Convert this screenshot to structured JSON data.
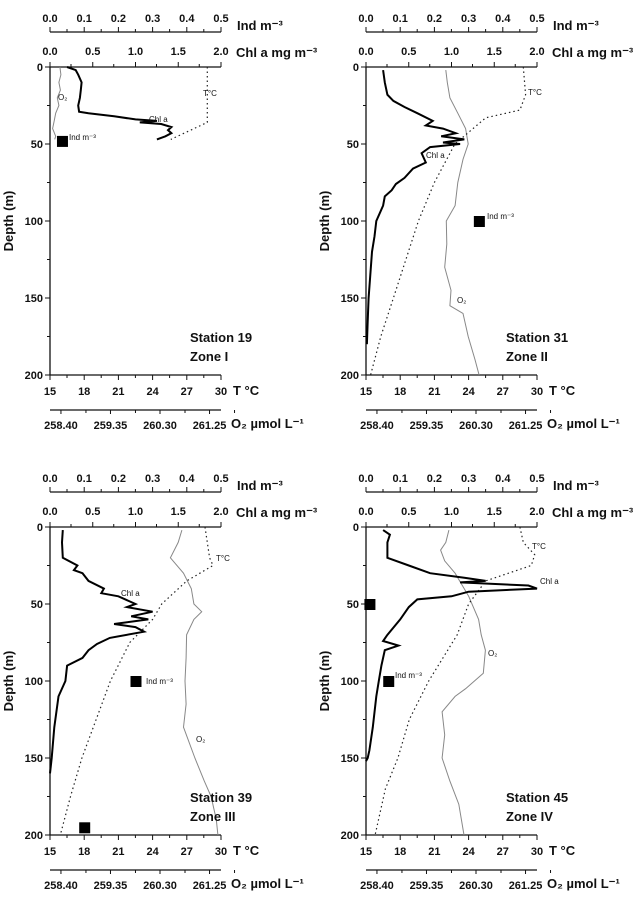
{
  "chart_data": {
    "type": "line",
    "shared": {
      "ind_axis": {
        "label": "Ind m⁻³",
        "range": [
          0,
          0.5
        ],
        "ticks": [
          "0.0",
          "0.1",
          "0.2",
          "0.3",
          "0.4",
          "0.5"
        ]
      },
      "chl_axis": {
        "label": "Chl a mg m⁻³",
        "range": [
          0,
          2.0
        ],
        "ticks": [
          "0.0",
          "0.5",
          "1.0",
          "1.5",
          "2.0"
        ]
      },
      "temp_axis": {
        "label": "T °C",
        "range": [
          15,
          30
        ],
        "ticks": [
          "15",
          "18",
          "21",
          "24",
          "27",
          "30"
        ]
      },
      "o2_axis": {
        "label": "O₂ µmol L⁻¹",
        "range": [
          258.19,
          261.47
        ],
        "ticks": [
          "258.40",
          "259.35",
          "260.30",
          "261.25"
        ]
      },
      "depth_axis": {
        "label": "Depth (m)",
        "range": [
          0,
          200
        ],
        "ticks": [
          "0",
          "50",
          "100",
          "150",
          "200"
        ]
      },
      "curve_labels": {
        "o2": "O₂",
        "chl": "Chl a",
        "temp": "T°C",
        "ind": "Ind m⁻³"
      }
    },
    "panels": [
      {
        "station": "Station 19",
        "zone": "Zone I",
        "chl": [
          [
            0,
            0.2
          ],
          [
            2,
            0.3
          ],
          [
            5,
            0.33
          ],
          [
            10,
            0.37
          ],
          [
            15,
            0.36
          ],
          [
            20,
            0.35
          ],
          [
            25,
            0.33
          ],
          [
            29,
            0.34
          ],
          [
            30,
            0.45
          ],
          [
            32,
            0.75
          ],
          [
            34,
            1.0
          ],
          [
            35,
            1.25
          ],
          [
            36,
            1.05
          ],
          [
            37,
            1.3
          ],
          [
            39,
            1.42
          ],
          [
            41,
            1.38
          ],
          [
            43,
            1.42
          ],
          [
            45,
            1.35
          ],
          [
            47,
            1.25
          ]
        ],
        "temp": [
          [
            0,
            28.8
          ],
          [
            36,
            28.8
          ],
          [
            47,
            25.6
          ]
        ],
        "o2": [
          [
            0,
            258.38
          ],
          [
            5,
            258.4
          ],
          [
            10,
            258.36
          ],
          [
            15,
            258.39
          ],
          [
            20,
            258.33
          ],
          [
            25,
            258.36
          ],
          [
            30,
            258.3
          ],
          [
            35,
            258.27
          ],
          [
            40,
            258.24
          ],
          [
            45,
            258.3
          ],
          [
            47,
            258.28
          ]
        ],
        "ind": [
          [
            48,
            0.035
          ]
        ]
      },
      {
        "station": "Station 31",
        "zone": "Zone II",
        "chl": [
          [
            2,
            0.2
          ],
          [
            10,
            0.22
          ],
          [
            18,
            0.25
          ],
          [
            22,
            0.32
          ],
          [
            26,
            0.45
          ],
          [
            30,
            0.6
          ],
          [
            35,
            0.78
          ],
          [
            38,
            0.7
          ],
          [
            40,
            0.9
          ],
          [
            43,
            1.05
          ],
          [
            45,
            0.88
          ],
          [
            47,
            1.15
          ],
          [
            49,
            0.9
          ],
          [
            50,
            1.1
          ],
          [
            52,
            0.75
          ],
          [
            56,
            0.65
          ],
          [
            62,
            0.7
          ],
          [
            66,
            0.55
          ],
          [
            72,
            0.45
          ],
          [
            76,
            0.35
          ],
          [
            80,
            0.3
          ],
          [
            84,
            0.22
          ],
          [
            90,
            0.2
          ],
          [
            100,
            0.12
          ],
          [
            110,
            0.1
          ],
          [
            120,
            0.07
          ],
          [
            135,
            0.05
          ],
          [
            150,
            0.03
          ],
          [
            165,
            0.02
          ],
          [
            180,
            0.01
          ]
        ],
        "temp": [
          [
            0,
            28.8
          ],
          [
            18,
            29.0
          ],
          [
            28,
            28.5
          ],
          [
            33,
            25.5
          ],
          [
            50,
            22.8
          ],
          [
            75,
            21.0
          ],
          [
            100,
            19.6
          ],
          [
            125,
            18.5
          ],
          [
            150,
            17.4
          ],
          [
            175,
            16.3
          ],
          [
            200,
            15.4
          ]
        ],
        "o2": [
          [
            2,
            259.72
          ],
          [
            10,
            259.75
          ],
          [
            20,
            259.8
          ],
          [
            30,
            259.95
          ],
          [
            40,
            260.1
          ],
          [
            50,
            260.15
          ],
          [
            60,
            260.05
          ],
          [
            75,
            259.95
          ],
          [
            90,
            259.9
          ],
          [
            100,
            259.73
          ],
          [
            115,
            259.74
          ],
          [
            130,
            259.7
          ],
          [
            145,
            259.82
          ],
          [
            155,
            259.8
          ],
          [
            160,
            260.05
          ],
          [
            175,
            260.15
          ],
          [
            190,
            260.28
          ],
          [
            200,
            260.36
          ]
        ],
        "ind": [
          [
            100,
            0.33
          ]
        ]
      },
      {
        "station": "Station 39",
        "zone": "Zone III",
        "chl": [
          [
            2,
            0.15
          ],
          [
            10,
            0.14
          ],
          [
            20,
            0.15
          ],
          [
            25,
            0.32
          ],
          [
            28,
            0.28
          ],
          [
            30,
            0.38
          ],
          [
            35,
            0.45
          ],
          [
            40,
            0.63
          ],
          [
            43,
            0.6
          ],
          [
            45,
            0.8
          ],
          [
            50,
            1.0
          ],
          [
            52,
            0.9
          ],
          [
            55,
            1.2
          ],
          [
            58,
            0.95
          ],
          [
            60,
            1.15
          ],
          [
            63,
            0.75
          ],
          [
            65,
            1.0
          ],
          [
            68,
            1.1
          ],
          [
            72,
            0.7
          ],
          [
            76,
            0.55
          ],
          [
            80,
            0.45
          ],
          [
            85,
            0.38
          ],
          [
            90,
            0.2
          ],
          [
            100,
            0.18
          ],
          [
            110,
            0.1
          ],
          [
            130,
            0.05
          ],
          [
            150,
            0.02
          ],
          [
            160,
            0.0
          ]
        ],
        "temp": [
          [
            0,
            28.6
          ],
          [
            20,
            29.0
          ],
          [
            25,
            29.3
          ],
          [
            35,
            27.0
          ],
          [
            50,
            24.8
          ],
          [
            60,
            24.0
          ],
          [
            75,
            22.0
          ],
          [
            100,
            20.3
          ],
          [
            120,
            19.3
          ],
          [
            150,
            17.8
          ],
          [
            175,
            16.8
          ],
          [
            200,
            15.9
          ]
        ],
        "o2": [
          [
            2,
            260.72
          ],
          [
            10,
            260.65
          ],
          [
            20,
            260.5
          ],
          [
            30,
            260.75
          ],
          [
            40,
            260.9
          ],
          [
            50,
            260.95
          ],
          [
            55,
            261.1
          ],
          [
            60,
            260.95
          ],
          [
            70,
            260.81
          ],
          [
            85,
            260.8
          ],
          [
            100,
            260.78
          ],
          [
            115,
            260.8
          ],
          [
            130,
            260.75
          ],
          [
            150,
            260.97
          ],
          [
            165,
            261.15
          ],
          [
            175,
            261.28
          ],
          [
            190,
            261.38
          ],
          [
            200,
            261.41
          ]
        ],
        "ind": [
          [
            100,
            0.25
          ],
          [
            195,
            0.1
          ]
        ]
      },
      {
        "station": "Station 45",
        "zone": "Zone IV",
        "chl": [
          [
            2,
            0.2
          ],
          [
            5,
            0.28
          ],
          [
            10,
            0.25
          ],
          [
            20,
            0.25
          ],
          [
            25,
            0.5
          ],
          [
            30,
            0.75
          ],
          [
            33,
            1.15
          ],
          [
            35,
            1.4
          ],
          [
            36,
            1.1
          ],
          [
            38,
            1.9
          ],
          [
            40,
            2.0
          ],
          [
            42,
            1.2
          ],
          [
            45,
            1.0
          ],
          [
            47,
            0.6
          ],
          [
            52,
            0.5
          ],
          [
            60,
            0.4
          ],
          [
            70,
            0.25
          ],
          [
            74,
            0.2
          ],
          [
            77,
            0.38
          ],
          [
            80,
            0.22
          ],
          [
            90,
            0.18
          ],
          [
            100,
            0.15
          ],
          [
            110,
            0.12
          ],
          [
            130,
            0.08
          ],
          [
            145,
            0.04
          ],
          [
            150,
            0.02
          ],
          [
            152,
            0.0
          ]
        ],
        "temp": [
          [
            0,
            28.5
          ],
          [
            10,
            28.8
          ],
          [
            18,
            29.8
          ],
          [
            25,
            29.5
          ],
          [
            35,
            25.5
          ],
          [
            50,
            24.0
          ],
          [
            70,
            23.0
          ],
          [
            100,
            20.5
          ],
          [
            125,
            18.8
          ],
          [
            150,
            17.8
          ],
          [
            170,
            16.7
          ],
          [
            200,
            15.8
          ]
        ],
        "o2": [
          [
            2,
            259.78
          ],
          [
            10,
            259.72
          ],
          [
            15,
            259.62
          ],
          [
            22,
            259.7
          ],
          [
            30,
            259.9
          ],
          [
            45,
            260.16
          ],
          [
            60,
            260.35
          ],
          [
            70,
            260.4
          ],
          [
            80,
            260.48
          ],
          [
            95,
            260.44
          ],
          [
            105,
            260.1
          ],
          [
            110,
            259.9
          ],
          [
            120,
            259.65
          ],
          [
            135,
            259.7
          ],
          [
            150,
            259.65
          ],
          [
            165,
            259.8
          ],
          [
            180,
            259.97
          ],
          [
            200,
            260.07
          ]
        ],
        "ind": [
          [
            50,
            0.01
          ],
          [
            100,
            0.065
          ]
        ]
      }
    ]
  }
}
